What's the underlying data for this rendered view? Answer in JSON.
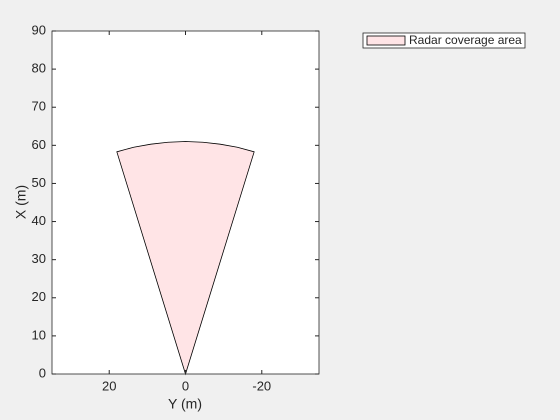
{
  "chart_data": {
    "type": "area",
    "xlabel": "Y (m)",
    "ylabel": "X (m)",
    "series": [
      {
        "name": "Radar coverage area",
        "color": "#ffe4e6",
        "edgecolor": "#000000",
        "x": [
          0,
          18.0,
          13.6,
          9.1,
          4.6,
          0,
          -4.6,
          -9.1,
          -13.6,
          -18.0
        ],
        "values": [
          0,
          58.3,
          59.5,
          60.3,
          60.8,
          61,
          60.8,
          60.3,
          59.5,
          58.3
        ]
      }
    ],
    "xlim": [
      35,
      -35
    ],
    "xticks": [
      20,
      0,
      -20
    ],
    "ylim": [
      0,
      90
    ],
    "yticks": [
      0,
      10,
      20,
      30,
      40,
      50,
      60,
      70,
      80,
      90
    ],
    "grid": false,
    "legend": "outside-top-right"
  }
}
